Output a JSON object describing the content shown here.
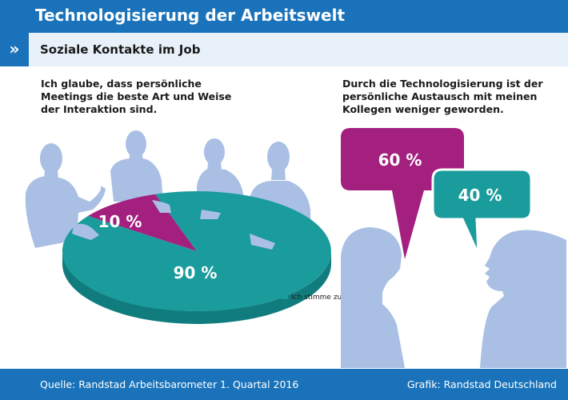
{
  "header": {
    "title": "Technologisierung der Arbeitswelt"
  },
  "subheader": {
    "chevron": "»",
    "title": "Soziale Kontakte im Job"
  },
  "left_statement": {
    "lines": [
      "Ich glaube, dass persönliche",
      "Meetings die beste Art und Weise",
      "der Interaktion sind."
    ]
  },
  "right_statement": {
    "lines": [
      "Durch die Technologisierung ist der",
      "persönliche Austausch mit meinen",
      "Kollegen weniger geworden."
    ]
  },
  "colors": {
    "brand_blue": "#1a73ba",
    "teal": "#1a9b9c",
    "purple": "#a3207f",
    "silhouette": "#a9c0e4"
  },
  "footer": {
    "source": "Quelle: Randstad Arbeitsbarometer 1. Quartal 2016",
    "credit": "Grafik: Randstad Deutschland"
  },
  "chart_data": [
    {
      "type": "pie",
      "slices": [
        {
          "label": "90 %",
          "value": 90,
          "color": "#1a9b9c"
        },
        {
          "label": "10 %",
          "value": 10,
          "color": "#a3207f"
        }
      ],
      "legend": [
        {
          "label": "Ich stimme zu",
          "color": "#1a9b9c"
        }
      ]
    },
    {
      "type": "bar",
      "categories": [
        "60 %",
        "40 %"
      ],
      "values": [
        60,
        40
      ],
      "colors": [
        "#a3207f",
        "#1a9b9c"
      ]
    }
  ]
}
